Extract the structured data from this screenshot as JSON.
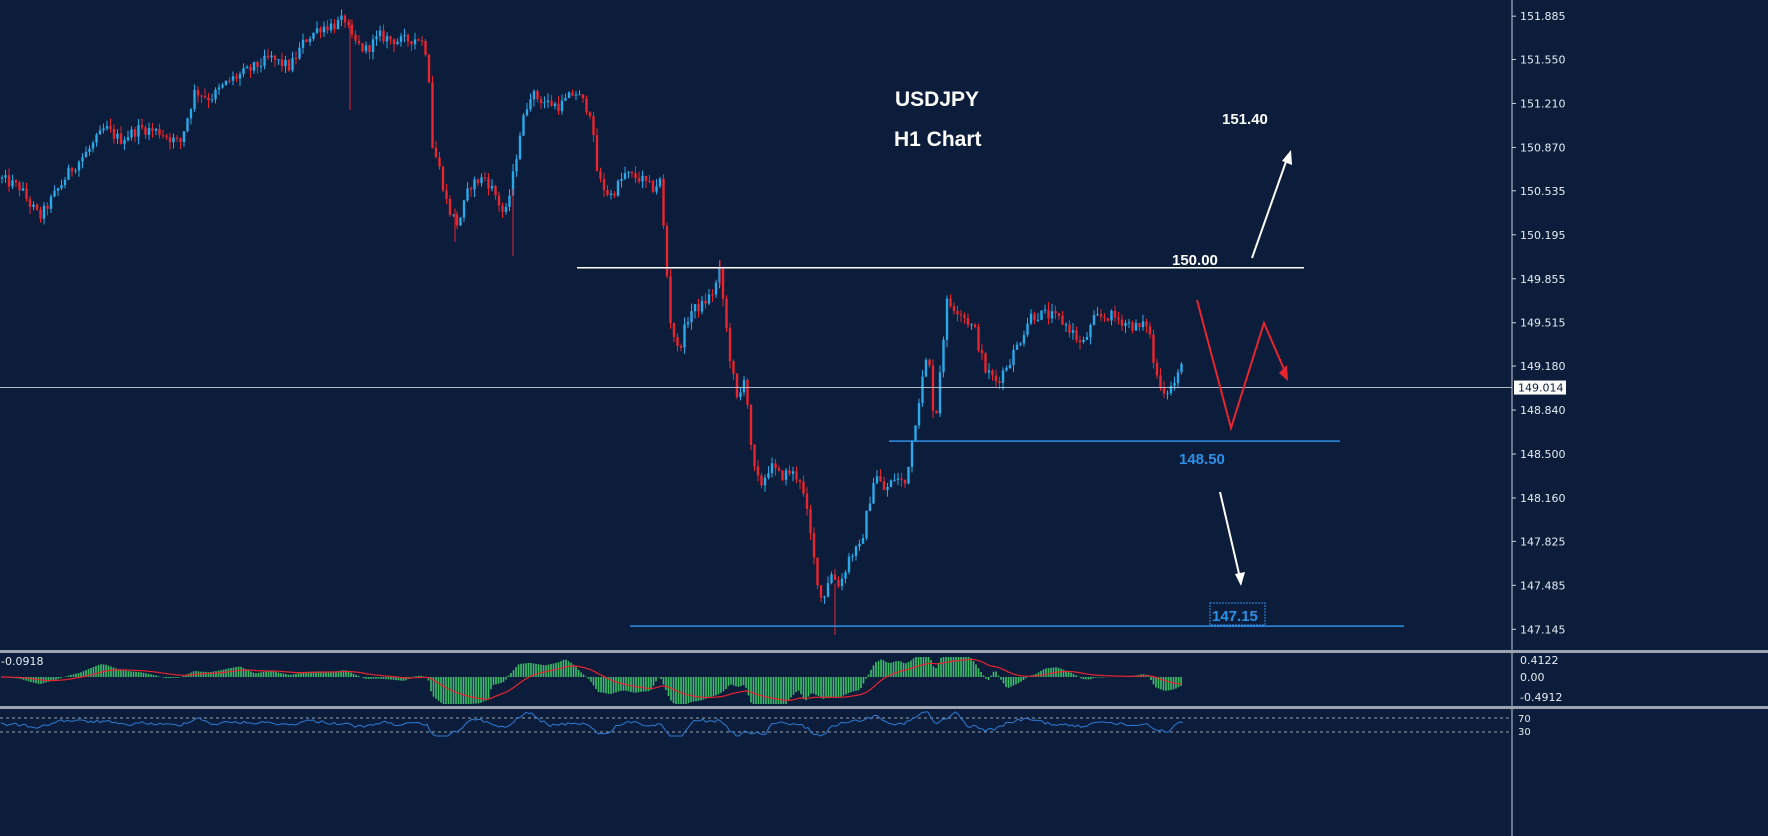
{
  "chart_data": {
    "type": "candlestick",
    "symbol": "USDJPY",
    "timeframe": "H1 Chart",
    "price_axis": {
      "ylim": [
        146.985,
        152.01
      ],
      "ticks": [
        "151.885",
        "151.550",
        "151.210",
        "150.870",
        "150.535",
        "150.195",
        "149.855",
        "149.515",
        "149.180",
        "148.840",
        "148.500",
        "148.160",
        "147.825",
        "147.485",
        "147.145"
      ]
    },
    "current_price": "149.014",
    "levels": [
      {
        "label": "150.00",
        "price": 149.94,
        "color": "#ffffff",
        "role": "resistance"
      },
      {
        "label": "148.50",
        "price": 148.6,
        "color": "#2e8fe6",
        "role": "support"
      },
      {
        "label": "147.15",
        "price": 147.17,
        "color": "#2e8fe6",
        "role": "target"
      }
    ],
    "target_up": "151.40",
    "colors": {
      "bull": "#29a9e8",
      "bear": "#e8242e",
      "background": "#0b1d3a",
      "macd_hist": "#3cbf6a",
      "macd_signal": "#e8242e",
      "rsi": "#2e7bd6"
    },
    "price_path": [
      [
        0,
        150.63
      ],
      [
        20,
        150.56
      ],
      [
        30,
        150.43
      ],
      [
        40,
        150.33
      ],
      [
        55,
        150.51
      ],
      [
        70,
        150.69
      ],
      [
        90,
        150.86
      ],
      [
        105,
        151.02
      ],
      [
        120,
        150.93
      ],
      [
        140,
        151.02
      ],
      [
        160,
        150.99
      ],
      [
        180,
        150.9
      ],
      [
        195,
        151.31
      ],
      [
        210,
        151.25
      ],
      [
        230,
        151.39
      ],
      [
        250,
        151.47
      ],
      [
        270,
        151.56
      ],
      [
        290,
        151.49
      ],
      [
        305,
        151.7
      ],
      [
        320,
        151.8
      ],
      [
        335,
        151.82
      ],
      [
        345,
        151.86
      ],
      [
        352,
        151.7
      ],
      [
        365,
        151.62
      ],
      [
        380,
        151.73
      ],
      [
        400,
        151.69
      ],
      [
        420,
        151.72
      ],
      [
        428,
        151.58
      ],
      [
        432,
        150.9
      ],
      [
        440,
        150.69
      ],
      [
        448,
        150.4
      ],
      [
        458,
        150.27
      ],
      [
        470,
        150.58
      ],
      [
        485,
        150.64
      ],
      [
        495,
        150.51
      ],
      [
        505,
        150.33
      ],
      [
        512,
        150.6
      ],
      [
        520,
        150.98
      ],
      [
        530,
        151.29
      ],
      [
        545,
        151.22
      ],
      [
        560,
        151.19
      ],
      [
        575,
        151.3
      ],
      [
        590,
        151.15
      ],
      [
        598,
        150.63
      ],
      [
        610,
        150.49
      ],
      [
        625,
        150.66
      ],
      [
        640,
        150.63
      ],
      [
        652,
        150.55
      ],
      [
        660,
        150.61
      ],
      [
        665,
        150.1
      ],
      [
        670,
        149.55
      ],
      [
        678,
        149.29
      ],
      [
        690,
        149.6
      ],
      [
        702,
        149.65
      ],
      [
        714,
        149.76
      ],
      [
        720,
        149.92
      ],
      [
        725,
        149.55
      ],
      [
        730,
        149.25
      ],
      [
        738,
        148.87
      ],
      [
        745,
        149.15
      ],
      [
        752,
        148.43
      ],
      [
        760,
        148.25
      ],
      [
        770,
        148.41
      ],
      [
        780,
        148.33
      ],
      [
        790,
        148.36
      ],
      [
        800,
        148.31
      ],
      [
        808,
        148.0
      ],
      [
        815,
        147.63
      ],
      [
        822,
        147.35
      ],
      [
        830,
        147.58
      ],
      [
        840,
        147.49
      ],
      [
        850,
        147.72
      ],
      [
        860,
        147.77
      ],
      [
        868,
        148.08
      ],
      [
        875,
        148.35
      ],
      [
        885,
        148.21
      ],
      [
        895,
        148.32
      ],
      [
        905,
        148.27
      ],
      [
        912,
        148.6
      ],
      [
        920,
        148.98
      ],
      [
        928,
        149.29
      ],
      [
        935,
        148.7
      ],
      [
        940,
        149.15
      ],
      [
        947,
        149.67
      ],
      [
        960,
        149.61
      ],
      [
        975,
        149.45
      ],
      [
        985,
        149.15
      ],
      [
        997,
        149.06
      ],
      [
        1010,
        149.23
      ],
      [
        1020,
        149.38
      ],
      [
        1030,
        149.57
      ],
      [
        1045,
        149.58
      ],
      [
        1060,
        149.54
      ],
      [
        1072,
        149.45
      ],
      [
        1082,
        149.33
      ],
      [
        1095,
        149.55
      ],
      [
        1110,
        149.57
      ],
      [
        1125,
        149.52
      ],
      [
        1140,
        149.47
      ],
      [
        1148,
        149.52
      ],
      [
        1155,
        149.13
      ],
      [
        1165,
        148.98
      ],
      [
        1175,
        149.05
      ],
      [
        1183,
        149.2
      ]
    ],
    "macd": {
      "value_label": "-0.0918",
      "ticks": [
        "0.4122",
        "0.00",
        "-0.4912"
      ],
      "range": [
        -0.62,
        0.55
      ]
    },
    "rsi": {
      "ticks": [
        "70",
        "30"
      ]
    }
  }
}
